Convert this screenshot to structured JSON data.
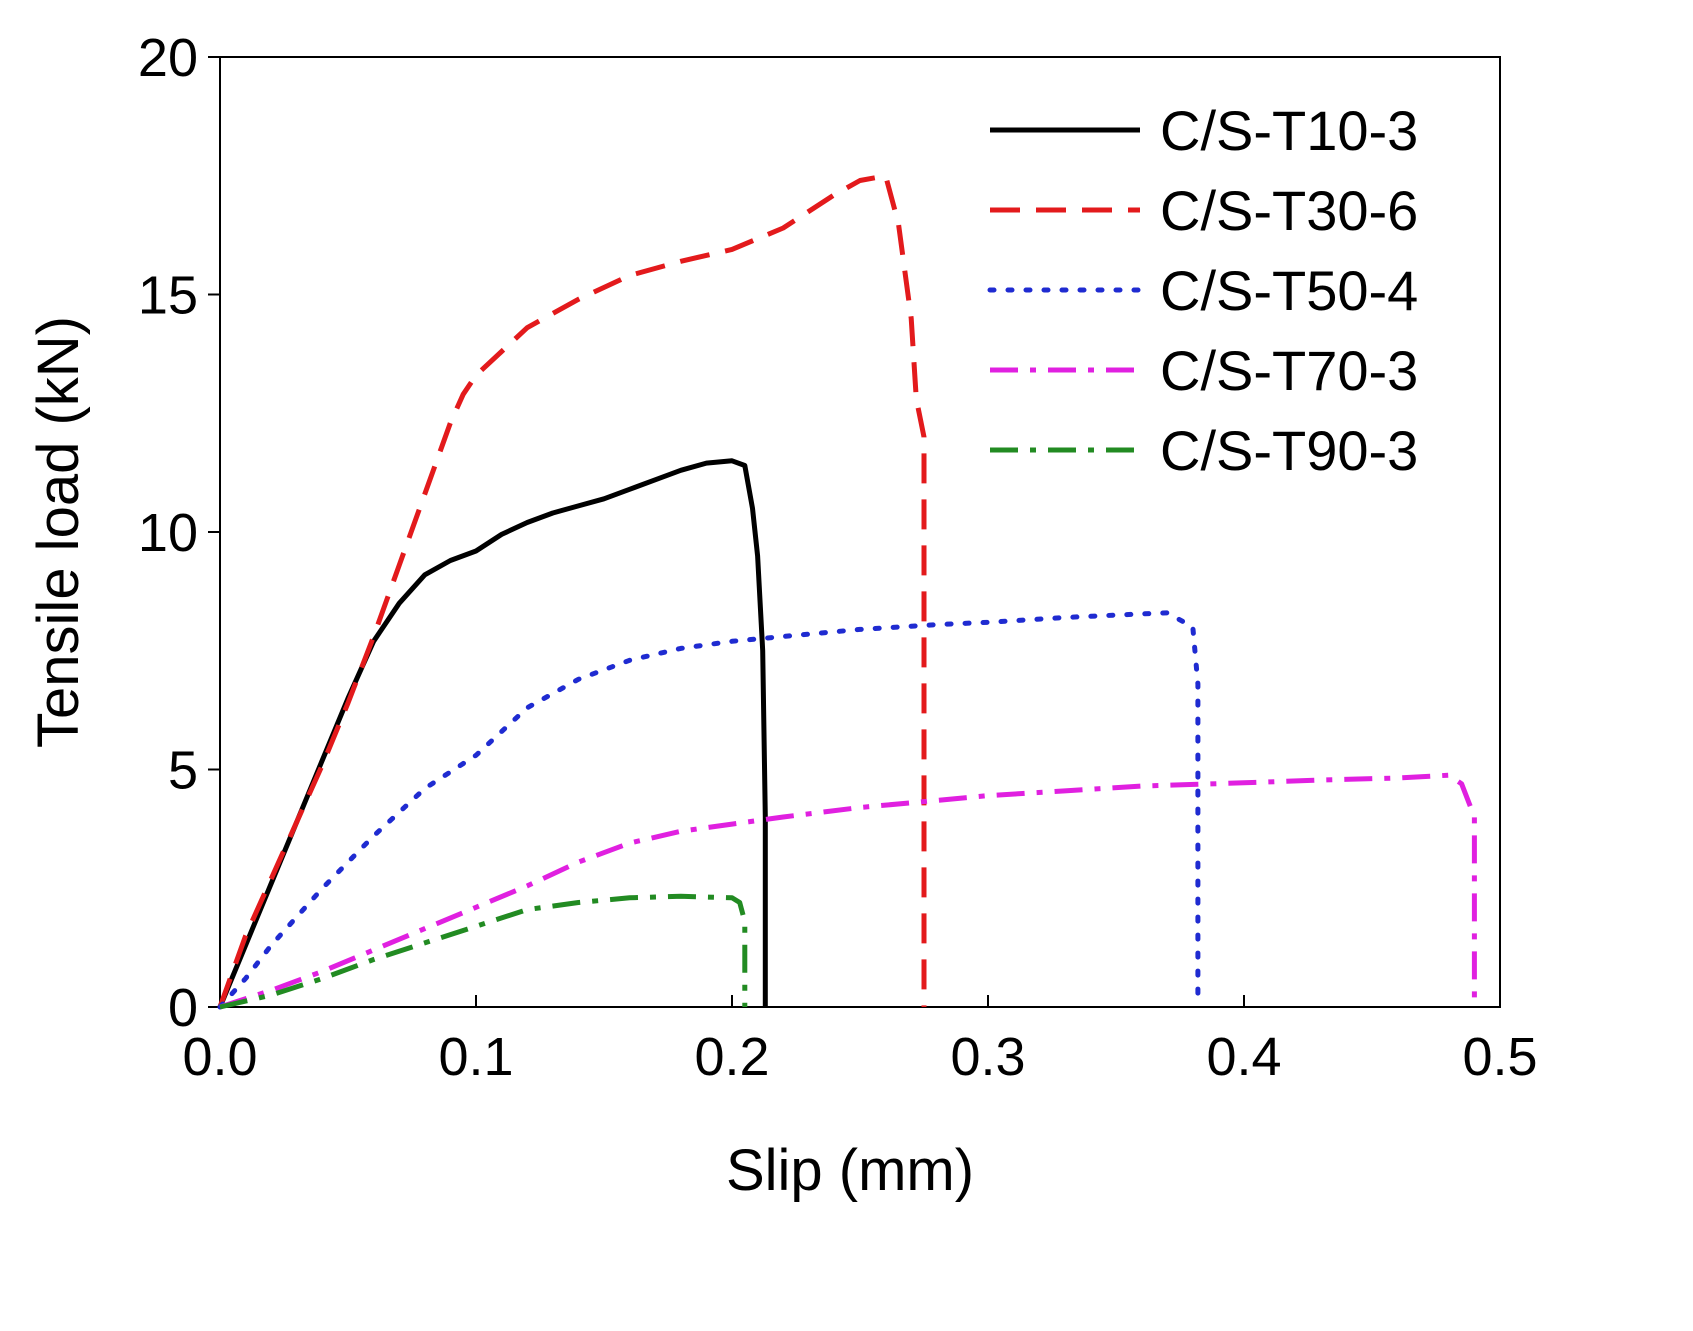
{
  "chart_data": {
    "type": "line",
    "title": "",
    "xlabel": "Slip (mm)",
    "ylabel": "Tensile load (kN)",
    "xlim": [
      0,
      0.5
    ],
    "ylim": [
      0,
      20
    ],
    "xticks": [
      0,
      0.1,
      0.2,
      0.3,
      0.4,
      0.5
    ],
    "xtick_labels": [
      "0.0",
      "0.1",
      "0.2",
      "0.3",
      "0.4",
      "0.5"
    ],
    "yticks": [
      0,
      5,
      10,
      15,
      20
    ],
    "ytick_labels": [
      "0",
      "5",
      "10",
      "15",
      "20"
    ],
    "grid": false,
    "legend_position": "top-right",
    "series": [
      {
        "name": "C/S-T10-3",
        "color": "#000000",
        "style": "solid",
        "x": [
          0,
          0.01,
          0.02,
          0.03,
          0.04,
          0.05,
          0.06,
          0.07,
          0.08,
          0.09,
          0.1,
          0.11,
          0.12,
          0.13,
          0.14,
          0.15,
          0.16,
          0.17,
          0.18,
          0.19,
          0.2,
          0.205,
          0.208,
          0.21,
          0.212,
          0.213,
          0.213
        ],
        "y": [
          0,
          1.3,
          2.6,
          3.9,
          5.2,
          6.5,
          7.7,
          8.5,
          9.1,
          9.4,
          9.6,
          9.95,
          10.2,
          10.4,
          10.55,
          10.7,
          10.9,
          11.1,
          11.3,
          11.45,
          11.5,
          11.4,
          10.5,
          9.5,
          7.5,
          4.0,
          0
        ]
      },
      {
        "name": "C/S-T30-6",
        "color": "#e31a1c",
        "style": "dashed",
        "x": [
          0,
          0.01,
          0.02,
          0.03,
          0.04,
          0.05,
          0.06,
          0.07,
          0.08,
          0.09,
          0.095,
          0.1,
          0.11,
          0.12,
          0.14,
          0.16,
          0.18,
          0.2,
          0.22,
          0.24,
          0.25,
          0.26,
          0.265,
          0.27,
          0.272,
          0.275,
          0.275,
          0.275
        ],
        "y": [
          0,
          1.5,
          2.7,
          3.9,
          5.1,
          6.4,
          7.8,
          9.3,
          10.8,
          12.3,
          12.9,
          13.3,
          13.8,
          14.3,
          14.9,
          15.4,
          15.7,
          15.95,
          16.4,
          17.1,
          17.4,
          17.5,
          16.5,
          14.5,
          12.8,
          12.0,
          6.0,
          0
        ]
      },
      {
        "name": "C/S-T50-4",
        "color": "#1f2bd1",
        "style": "dotted",
        "x": [
          0,
          0.01,
          0.02,
          0.04,
          0.06,
          0.08,
          0.1,
          0.12,
          0.14,
          0.16,
          0.18,
          0.2,
          0.22,
          0.25,
          0.28,
          0.3,
          0.33,
          0.35,
          0.37,
          0.38,
          0.382,
          0.382,
          0.382
        ],
        "y": [
          0,
          0.6,
          1.3,
          2.5,
          3.6,
          4.6,
          5.3,
          6.3,
          6.9,
          7.3,
          7.55,
          7.7,
          7.8,
          7.95,
          8.05,
          8.1,
          8.2,
          8.25,
          8.3,
          8.0,
          6.8,
          3.0,
          0
        ]
      },
      {
        "name": "C/S-T70-3",
        "color": "#e020e0",
        "style": "dashdot",
        "x": [
          0,
          0.02,
          0.04,
          0.06,
          0.08,
          0.1,
          0.12,
          0.14,
          0.16,
          0.18,
          0.2,
          0.22,
          0.25,
          0.28,
          0.3,
          0.33,
          0.36,
          0.4,
          0.43,
          0.46,
          0.48,
          0.485,
          0.49,
          0.49,
          0.49
        ],
        "y": [
          0,
          0.35,
          0.75,
          1.2,
          1.65,
          2.1,
          2.55,
          3.05,
          3.45,
          3.7,
          3.85,
          4.0,
          4.2,
          4.35,
          4.45,
          4.55,
          4.65,
          4.72,
          4.78,
          4.82,
          4.88,
          4.7,
          4.0,
          2.0,
          0
        ]
      },
      {
        "name": "C/S-T90-3",
        "color": "#228b22",
        "style": "dashdot",
        "x": [
          0,
          0.02,
          0.04,
          0.06,
          0.08,
          0.1,
          0.12,
          0.14,
          0.16,
          0.18,
          0.2,
          0.203,
          0.205,
          0.205,
          0.205
        ],
        "y": [
          0,
          0.25,
          0.6,
          1.0,
          1.35,
          1.7,
          2.05,
          2.2,
          2.3,
          2.33,
          2.3,
          2.2,
          1.8,
          0.8,
          0
        ]
      }
    ]
  }
}
